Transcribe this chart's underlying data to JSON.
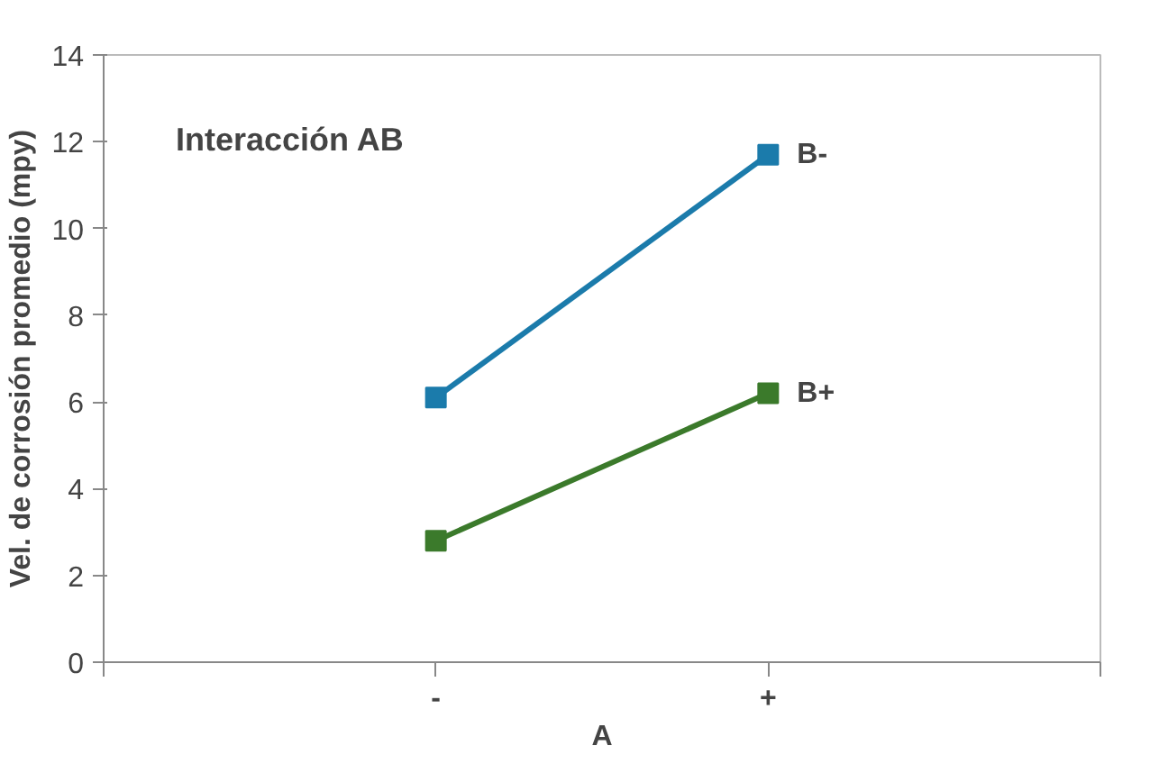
{
  "chart_data": {
    "type": "line",
    "annotations": [
      "Interacción AB"
    ],
    "xlabel": "A",
    "ylabel": "Vel. de corrosión promedio (mpy)",
    "categories": [
      null,
      "-",
      "+",
      null
    ],
    "ylim": [
      0,
      14
    ],
    "yticks": [
      0,
      2,
      4,
      6,
      8,
      10,
      12,
      14
    ],
    "grid": false,
    "marker": "square",
    "line_style": "solid",
    "series": [
      {
        "name": "B-",
        "color": "#1b7bab",
        "values": [
          null,
          6.1,
          11.7,
          null
        ]
      },
      {
        "name": "B+",
        "color": "#3b7a2b",
        "values": [
          null,
          2.8,
          6.2,
          null
        ]
      }
    ]
  }
}
